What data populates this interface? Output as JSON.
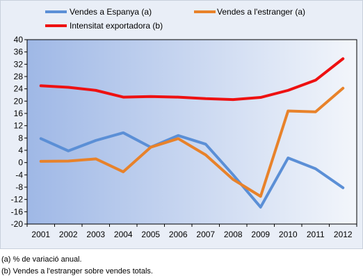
{
  "chart_data": {
    "type": "line",
    "x": [
      "2001",
      "2002",
      "2003",
      "2004",
      "2005",
      "2006",
      "2007",
      "2008",
      "2009",
      "2010",
      "2011",
      "2012"
    ],
    "ylim": [
      -20,
      40
    ],
    "yticks": [
      -20,
      -16,
      -12,
      -8,
      -4,
      0,
      4,
      8,
      12,
      16,
      20,
      24,
      28,
      32,
      36,
      40
    ],
    "grid": false,
    "legend_placement": "top",
    "series": [
      {
        "name": "Vendes a Espanya (a)",
        "color": "#5b8fd6",
        "values": [
          7.8,
          3.8,
          7.2,
          9.7,
          5.0,
          8.8,
          6.0,
          -4.0,
          -14.5,
          1.5,
          -2.0,
          -8.2
        ]
      },
      {
        "name": "Vendes a l'estranger (a)",
        "color": "#e8822a",
        "values": [
          0.4,
          0.5,
          1.2,
          -3.0,
          5.0,
          7.8,
          2.5,
          -5.5,
          -11.0,
          16.8,
          16.5,
          24.2
        ]
      },
      {
        "name": "Intensitat exportadora (b)",
        "color": "#ee1111",
        "values": [
          25.0,
          24.5,
          23.5,
          21.3,
          21.5,
          21.3,
          20.8,
          20.5,
          21.2,
          23.5,
          26.8,
          33.8
        ]
      }
    ]
  },
  "footnotes": [
    "(a) % de variació anual.",
    "(b) Vendes a l'estranger sobre vendes totals."
  ]
}
